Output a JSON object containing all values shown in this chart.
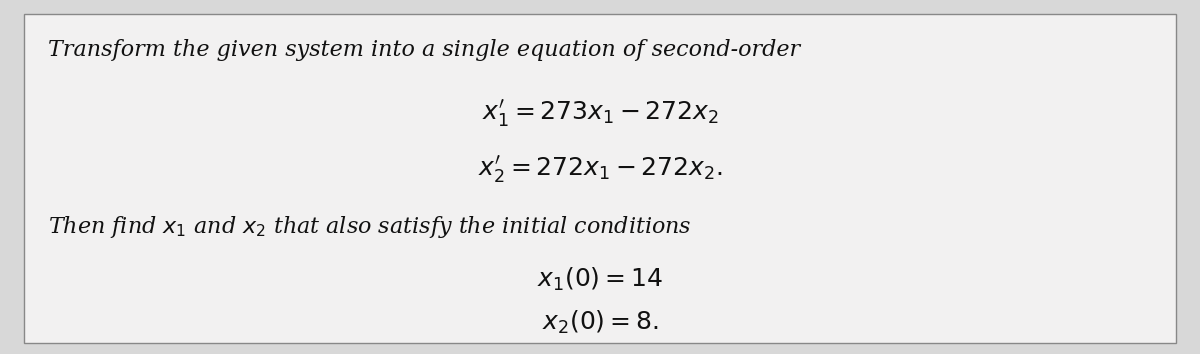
{
  "background_color": "#d8d8d8",
  "box_color": "#f2f1f1",
  "box_edge_color": "#888888",
  "text_color": "#111111",
  "line1": "Transform the given system into a single equation of second-order",
  "line2": "$x_1^{\\prime} = 273x_1 - 272x_2$",
  "line3": "$x_2^{\\prime} = 272x_1 - 272x_2.$",
  "line4": "Then find $x_1$ and $x_2$ that also satisfy the initial conditions",
  "line5": "$x_1(0) = 14$",
  "line6": "$x_2(0) = 8.$",
  "figsize": [
    12.0,
    3.54
  ],
  "dpi": 100,
  "font_size_text": 16,
  "font_size_math": 18
}
